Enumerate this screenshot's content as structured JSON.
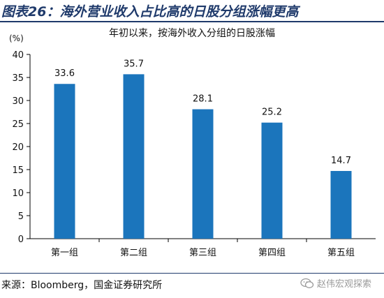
{
  "figure_title": "图表26：海外营业收入占比高的日股分组涨幅更高",
  "source": "来源：Bloomberg，国金证券研究所",
  "watermark": "赵伟宏观探索",
  "colors": {
    "bar": "#1b75bc",
    "title": "#1f3a6b",
    "axis": "#000000"
  },
  "chart_data": {
    "type": "bar",
    "title": "年初以来，按海外收入分组的日股涨幅",
    "ylabel": "(%)",
    "categories": [
      "第一组",
      "第二组",
      "第三组",
      "第四组",
      "第五组"
    ],
    "values": [
      33.6,
      35.7,
      28.1,
      25.2,
      14.7
    ],
    "value_labels": [
      "33.6",
      "35.7",
      "28.1",
      "25.2",
      "14.7"
    ],
    "ylim": [
      0,
      40
    ],
    "yticks": [
      0,
      5,
      10,
      15,
      20,
      25,
      30,
      35,
      40
    ],
    "grid": false,
    "legend": "none"
  }
}
